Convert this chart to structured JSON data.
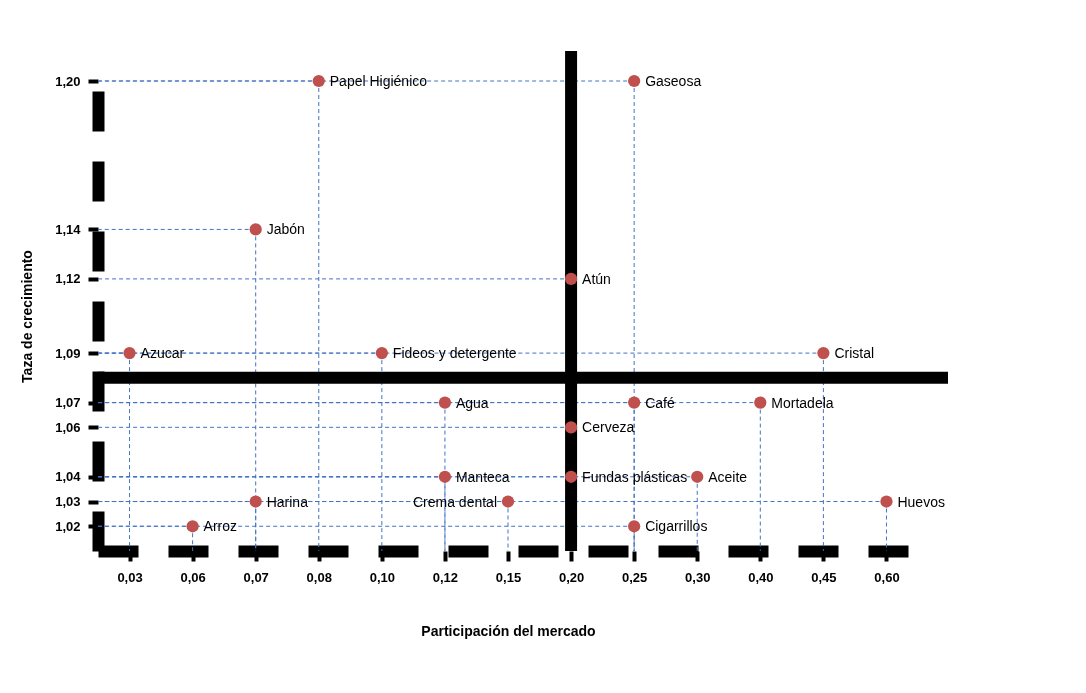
{
  "chart_data": {
    "type": "scatter",
    "xlabel": "Participación del mercado",
    "ylabel": "Taza de crecimiento",
    "categories": [
      "0,03",
      "0,06",
      "0,07",
      "0,08",
      "0,10",
      "0,12",
      "0,15",
      "0,20",
      "0,25",
      "0,30",
      "0,40",
      "0,45",
      "0,60"
    ],
    "series": [
      {
        "color": "#c0504d",
        "x": [
          "0,03",
          "0,06",
          "0,07",
          "0,07",
          "0,08",
          "0,10",
          "0,12",
          "0,12",
          "0,15",
          "0,20",
          "0,20",
          "0,20",
          "0,25",
          "0,25",
          "0,25",
          "0,30",
          "0,40",
          "0,45",
          "0,60"
        ],
        "values": [
          1.09,
          1.02,
          1.03,
          1.14,
          1.2,
          1.09,
          1.07,
          1.04,
          1.03,
          1.12,
          1.06,
          1.04,
          1.2,
          1.07,
          1.02,
          1.04,
          1.07,
          1.09,
          1.03
        ]
      }
    ],
    "marker": "circle",
    "grid": true,
    "ylim": [
      1.01,
      1.2
    ],
    "yticks": [
      {
        "value": 1.02,
        "label": "1,02"
      },
      {
        "value": 1.03,
        "label": "1,03"
      },
      {
        "value": 1.04,
        "label": "1,04"
      },
      {
        "value": 1.06,
        "label": "1,06"
      },
      {
        "value": 1.07,
        "label": "1,07"
      },
      {
        "value": 1.09,
        "label": "1,09"
      },
      {
        "value": 1.12,
        "label": "1,12"
      },
      {
        "value": 1.14,
        "label": "1,14"
      },
      {
        "value": 1.2,
        "label": "1,20"
      }
    ],
    "ref_lines": [
      {
        "axis": "x",
        "value": "0,20",
        "color": "#000000"
      },
      {
        "axis": "y",
        "value": 1.08,
        "color": "#000000"
      }
    ],
    "annotations": [
      {
        "text": "Azucar",
        "x": "0,03",
        "y": 1.09
      },
      {
        "text": "Arroz",
        "x": "0,06",
        "y": 1.02
      },
      {
        "text": "Harina",
        "x": "0,07",
        "y": 1.03
      },
      {
        "text": "Jabón",
        "x": "0,07",
        "y": 1.14
      },
      {
        "text": "Papel Higiénico",
        "x": "0,08",
        "y": 1.2
      },
      {
        "text": "Fideos y detergente",
        "x": "0,10",
        "y": 1.09
      },
      {
        "text": "Agua",
        "x": "0,12",
        "y": 1.07
      },
      {
        "text": "Manteca",
        "x": "0,12",
        "y": 1.04
      },
      {
        "text": "Crema dental",
        "x": "0,15",
        "y": 1.03
      },
      {
        "text": "Atún",
        "x": "0,20",
        "y": 1.12
      },
      {
        "text": "Cerveza",
        "x": "0,20",
        "y": 1.06
      },
      {
        "text": "Fundas plásticas",
        "x": "0,20",
        "y": 1.04
      },
      {
        "text": "Gaseosa",
        "x": "0,25",
        "y": 1.2
      },
      {
        "text": "Café",
        "x": "0,25",
        "y": 1.07
      },
      {
        "text": "Cigarrillos",
        "x": "0,25",
        "y": 1.02
      },
      {
        "text": "Aceite",
        "x": "0,30",
        "y": 1.04
      },
      {
        "text": "Mortadela",
        "x": "0,40",
        "y": 1.07
      },
      {
        "text": "Cristal",
        "x": "0,45",
        "y": 1.09
      },
      {
        "text": "Huevos",
        "x": "0,60",
        "y": 1.03
      }
    ]
  }
}
